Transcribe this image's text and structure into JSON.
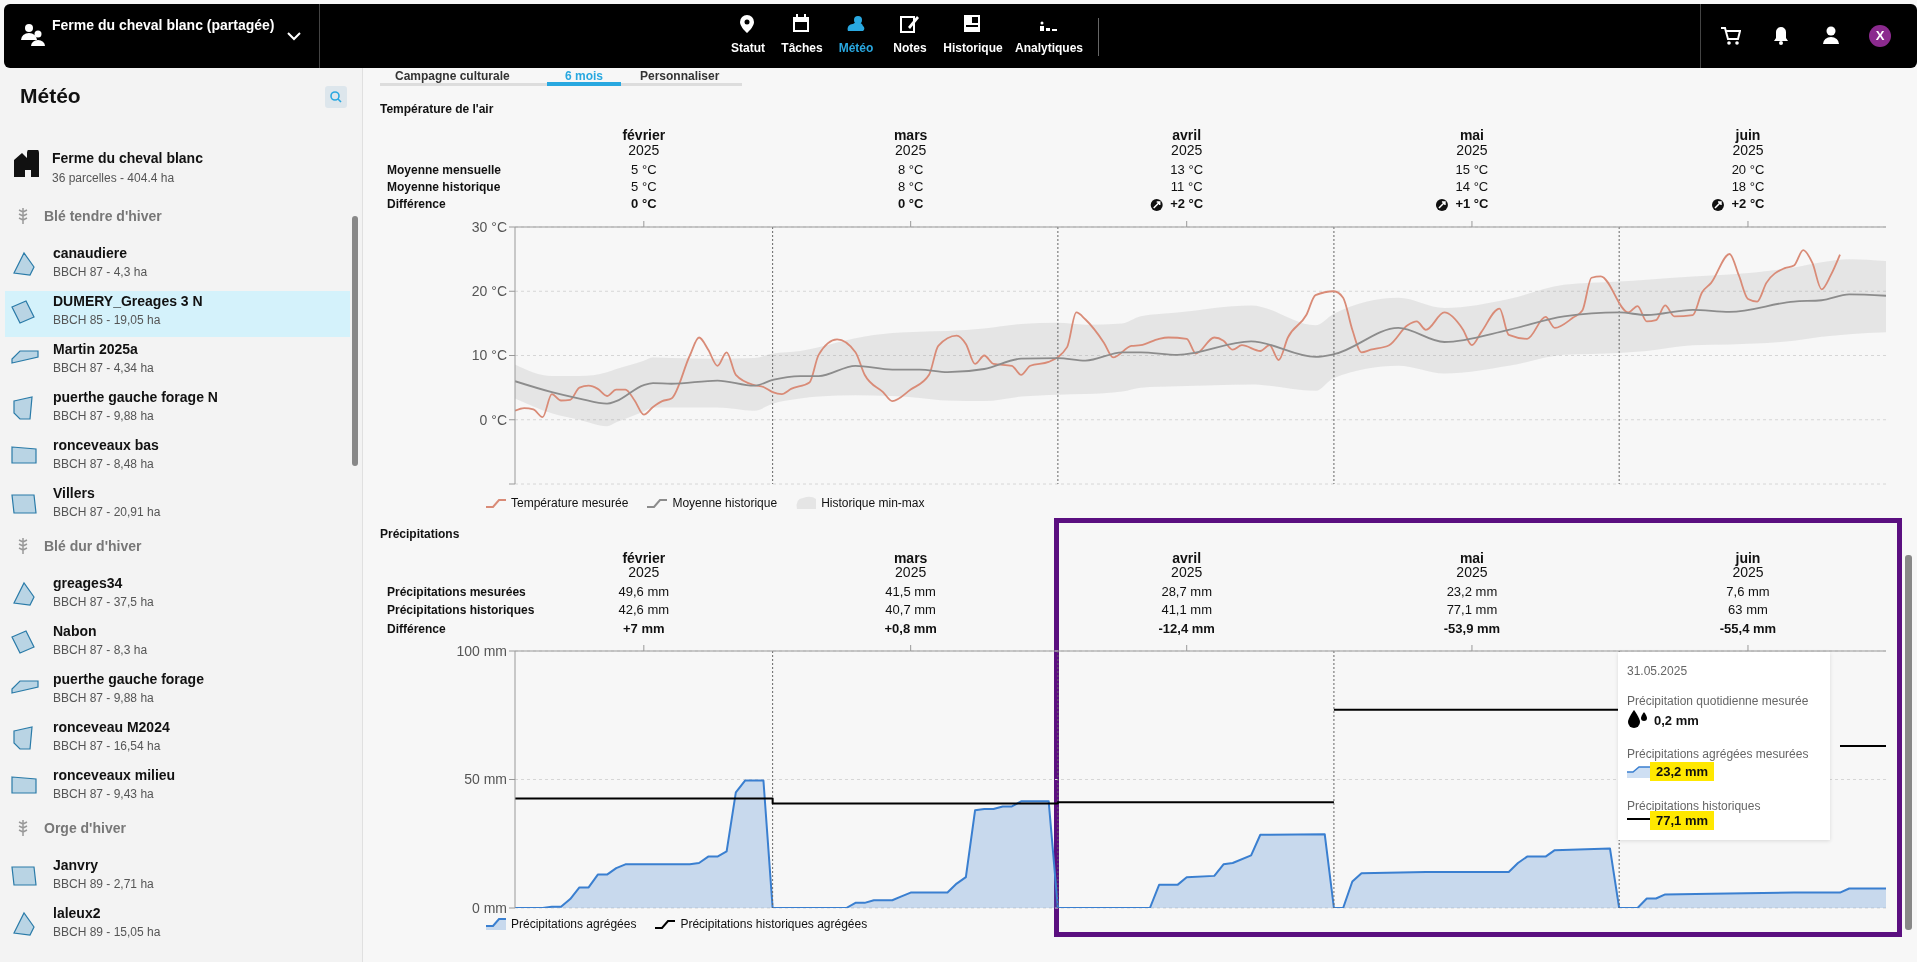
{
  "chart_data": [
    {
      "type": "line",
      "title": "Température de l'air",
      "xlim": [
        "2025-02-01",
        "2025-06-30"
      ],
      "xticks": [
        {
          "value": "2025-02-15",
          "label": "février 2025"
        },
        {
          "value": "2025-03-16",
          "label": "mars 2025"
        },
        {
          "value": "2025-04-15",
          "label": "avril 2025"
        },
        {
          "value": "2025-05-16",
          "label": "mai 2025"
        },
        {
          "value": "2025-06-15",
          "label": "juin 2025"
        }
      ],
      "ylim": [
        -10,
        30
      ],
      "yticks": [
        {
          "value": -10,
          "label": null
        },
        {
          "value": 0,
          "label": "0 °C"
        },
        {
          "value": 10,
          "label": "10 °C"
        },
        {
          "value": 20,
          "label": "20 °C"
        },
        {
          "value": 30,
          "label": "30 °C"
        }
      ],
      "grid": "y",
      "legend": "bottom",
      "ref_lines": [
        {
          "axis": "x",
          "value": "2025-03-01",
          "label": null,
          "line_style": "dotted"
        },
        {
          "axis": "x",
          "value": "2025-04-01",
          "label": null,
          "line_style": "dotted"
        },
        {
          "axis": "x",
          "value": "2025-05-01",
          "label": null,
          "line_style": "dotted"
        },
        {
          "axis": "x",
          "value": "2025-06-01",
          "label": null,
          "line_style": "dotted"
        }
      ],
      "annotations": [
        "Moyenne mensuelle",
        "5 °C",
        "8 °C",
        "13 °C",
        "15 °C",
        "20 °C",
        "Moyenne historique",
        "5 °C",
        "8 °C",
        "11 °C",
        "14 °C",
        "18 °C",
        "Différence",
        "0 °C",
        "0 °C",
        "+2 °C",
        "+1 °C",
        "+2 °C",
        "Historique min-max"
      ],
      "series": [
        {
          "name": "Température mesurée",
          "color": "#d98b77",
          "x": [
            "2025-02-01",
            "2025-02-02",
            "2025-02-03",
            "2025-02-04",
            "2025-02-05",
            "2025-02-06",
            "2025-02-07",
            "2025-02-08",
            "2025-02-09",
            "2025-02-10",
            "2025-02-11",
            "2025-02-12",
            "2025-02-13",
            "2025-02-14",
            "2025-02-15",
            "2025-02-16",
            "2025-02-17",
            "2025-02-18",
            "2025-02-20",
            "2025-02-21",
            "2025-02-22",
            "2025-02-23",
            "2025-02-24",
            "2025-02-25",
            "2025-02-27",
            "2025-02-28",
            "2025-03-01",
            "2025-03-02",
            "2025-03-03",
            "2025-03-05",
            "2025-03-06",
            "2025-03-08",
            "2025-03-10",
            "2025-03-11",
            "2025-03-13",
            "2025-03-14",
            "2025-03-16",
            "2025-03-18",
            "2025-03-19",
            "2025-03-21",
            "2025-03-22",
            "2025-03-23",
            "2025-03-24",
            "2025-03-25",
            "2025-03-27",
            "2025-03-28",
            "2025-03-29",
            "2025-03-31",
            "2025-04-02",
            "2025-04-03",
            "2025-04-04",
            "2025-04-06",
            "2025-04-07",
            "2025-04-09",
            "2025-04-10",
            "2025-04-12",
            "2025-04-13",
            "2025-04-15",
            "2025-04-16",
            "2025-04-18",
            "2025-04-19",
            "2025-04-20",
            "2025-04-21",
            "2025-04-23",
            "2025-04-24",
            "2025-04-25",
            "2025-04-26",
            "2025-04-28",
            "2025-04-29",
            "2025-05-01",
            "2025-05-02",
            "2025-05-03",
            "2025-05-04",
            "2025-05-05",
            "2025-05-07",
            "2025-05-09",
            "2025-05-10",
            "2025-05-11",
            "2025-05-13",
            "2025-05-15",
            "2025-05-16",
            "2025-05-17",
            "2025-05-19",
            "2025-05-20",
            "2025-05-22",
            "2025-05-24",
            "2025-05-25",
            "2025-05-27",
            "2025-05-28",
            "2025-05-29",
            "2025-05-30",
            "2025-06-02",
            "2025-06-03",
            "2025-06-04",
            "2025-06-05",
            "2025-06-06",
            "2025-06-07",
            "2025-06-09",
            "2025-06-10",
            "2025-06-11",
            "2025-06-13",
            "2025-06-14",
            "2025-06-15",
            "2025-06-16",
            "2025-06-17",
            "2025-06-19",
            "2025-06-20",
            "2025-06-21",
            "2025-06-22",
            "2025-06-23",
            "2025-06-24",
            "2025-06-25"
          ],
          "values": [
            1.4,
            1.8,
            1.6,
            0.4,
            4,
            3,
            3.1,
            5,
            5.3,
            4.8,
            3.7,
            4.7,
            4.7,
            3,
            0.8,
            2,
            2.9,
            3.3,
            10,
            12.8,
            10.9,
            8.4,
            10.5,
            7,
            5.4,
            5.1,
            4.3,
            4,
            4.8,
            5.8,
            10.1,
            12.5,
            10.5,
            7,
            4.3,
            2.9,
            4.7,
            7,
            11.5,
            13.1,
            11.8,
            8.7,
            10,
            8.7,
            8.4,
            7,
            8.4,
            9,
            11.3,
            16.7,
            15.6,
            12,
            9.7,
            11.5,
            11.6,
            12.6,
            12.8,
            12.6,
            10.3,
            12.8,
            12.3,
            10.9,
            11.6,
            10.7,
            11.6,
            9.3,
            12.8,
            16.3,
            19.4,
            20,
            19,
            14,
            10.5,
            10.9,
            11.6,
            14.7,
            15.3,
            14,
            16.7,
            14.1,
            11.6,
            13.6,
            17.3,
            13.2,
            12.6,
            16,
            14.3,
            15.9,
            17,
            22.1,
            22.3,
            16.7,
            17.7,
            15.3,
            15.5,
            17.8,
            16.1,
            16.3,
            19.8,
            21.3,
            25.8,
            22.5,
            18.8,
            18.4,
            21.3,
            23.6,
            24,
            26.4,
            24.4,
            20.3,
            22.5,
            25.7
          ]
        },
        {
          "name": "Moyenne historique",
          "color": "#8c8c8c",
          "x": [
            "2025-02-01",
            "2025-02-05",
            "2025-02-08",
            "2025-02-11",
            "2025-02-12",
            "2025-02-15",
            "2025-02-16",
            "2025-02-18",
            "2025-02-23",
            "2025-02-27",
            "2025-03-01",
            "2025-03-04",
            "2025-03-06",
            "2025-03-10",
            "2025-03-14",
            "2025-03-17",
            "2025-03-20",
            "2025-03-24",
            "2025-03-28",
            "2025-04-01",
            "2025-04-04",
            "2025-04-08",
            "2025-04-10",
            "2025-04-14",
            "2025-04-22",
            "2025-04-29",
            "2025-05-01",
            "2025-05-08",
            "2025-05-13",
            "2025-05-20",
            "2025-05-26",
            "2025-06-01",
            "2025-06-04",
            "2025-06-09",
            "2025-06-13",
            "2025-06-20",
            "2025-06-23",
            "2025-06-26",
            "2025-06-30"
          ],
          "values": [
            6,
            4.3,
            3.3,
            2.5,
            2.9,
            5.4,
            5.7,
            5.6,
            6.1,
            5.3,
            6.2,
            6.8,
            6.8,
            8.4,
            7.8,
            7.8,
            7.4,
            7.9,
            9.5,
            9.6,
            9.2,
            10.5,
            10.5,
            10.1,
            12.2,
            9.8,
            10.2,
            14.3,
            12.1,
            14,
            16.1,
            16.7,
            16.3,
            17.1,
            16.8,
            18.4,
            18.6,
            19.5,
            19.3
          ],
          "lower": [
            3.3,
            1,
            0,
            -1,
            -0.4,
            1.3,
            1.9,
            1.9,
            1.9,
            1.4,
            2.5,
            3.3,
            3.6,
            3.8,
            3.7,
            3.4,
            3,
            2.9,
            3.6,
            3.9,
            4,
            4.4,
            5,
            5.2,
            5.5,
            4.5,
            6.5,
            8.4,
            7.2,
            8.4,
            10.1,
            10.4,
            10.7,
            11.6,
            11.7,
            12.3,
            12.9,
            13.3,
            13.6
          ],
          "upper": [
            8.6,
            6.8,
            6.8,
            7.4,
            7.9,
            9.2,
            9.7,
            9.6,
            9.5,
            9.6,
            10.3,
            10.7,
            11.3,
            12.7,
            13.5,
            13.7,
            13.8,
            14.2,
            14.9,
            15.1,
            14.8,
            15,
            16.1,
            16.7,
            17.8,
            14.7,
            16.5,
            19,
            17.4,
            18.8,
            21,
            21.5,
            21.8,
            22.3,
            22.6,
            23.7,
            24.5,
            25,
            24.7
          ]
        }
      ]
    },
    {
      "type": "area",
      "title": "Précipitations",
      "xlim": [
        "2025-02-01",
        "2025-06-30"
      ],
      "xticks": [
        {
          "value": "2025-02-15",
          "label": "février 2025"
        },
        {
          "value": "2025-03-16",
          "label": "mars 2025"
        },
        {
          "value": "2025-04-15",
          "label": "avril 2025"
        },
        {
          "value": "2025-05-16",
          "label": "mai 2025"
        },
        {
          "value": "2025-06-15",
          "label": "juin 2025"
        }
      ],
      "ylim": [
        0,
        100
      ],
      "yticks": [
        {
          "value": 0,
          "label": "0 mm"
        },
        {
          "value": 50,
          "label": "50 mm"
        },
        {
          "value": 100,
          "label": "100 mm"
        }
      ],
      "grid": "y",
      "legend": "bottom",
      "ref_lines": [
        {
          "axis": "x",
          "value": "2025-03-01",
          "label": null,
          "line_style": "dotted"
        },
        {
          "axis": "x",
          "value": "2025-04-01",
          "label": null,
          "line_style": "dotted"
        },
        {
          "axis": "x",
          "value": "2025-05-01",
          "label": null,
          "line_style": "dotted"
        },
        {
          "axis": "x",
          "value": "2025-06-01",
          "label": null,
          "line_style": "dotted"
        }
      ],
      "annotations": [
        "Précipitations mesurées",
        "49,6 mm",
        "41,5 mm",
        "28,7 mm",
        "23,2 mm",
        "7,6 mm",
        "Précipitations historiques",
        "42,6 mm",
        "40,7 mm",
        "41,1 mm",
        "77,1 mm",
        "63 mm",
        "Différence",
        "+7 mm",
        "+0,8 mm",
        "-12,4 mm",
        "-53,9 mm",
        "-55,4 mm",
        "31.05.2025",
        "Précipitation quotidienne mesurée",
        "0,2 mm",
        "Précipitations agrégées mesurées",
        "23,2 mm",
        "Précipitations historiques",
        "77,1 mm"
      ],
      "series": [
        {
          "name": "Précipitations agrégées",
          "color": "#3a7fd0",
          "x": [
            "2025-02-01",
            "2025-02-04",
            "2025-02-05",
            "2025-02-06",
            "2025-02-07",
            "2025-02-08",
            "2025-02-09",
            "2025-02-10",
            "2025-02-11",
            "2025-02-12",
            "2025-02-13",
            "2025-02-20",
            "2025-02-21",
            "2025-02-22",
            "2025-02-23",
            "2025-02-24",
            "2025-02-25",
            "2025-02-26",
            "2025-02-28",
            "2025-03-01",
            "2025-03-09",
            "2025-03-10",
            "2025-03-11",
            "2025-03-12",
            "2025-03-14",
            "2025-03-15",
            "2025-03-16",
            "2025-03-20",
            "2025-03-21",
            "2025-03-22",
            "2025-03-23",
            "2025-03-24",
            "2025-03-25",
            "2025-03-26",
            "2025-03-27",
            "2025-03-28",
            "2025-03-31",
            "2025-04-01",
            "2025-04-11",
            "2025-04-12",
            "2025-04-14",
            "2025-04-15",
            "2025-04-18",
            "2025-04-19",
            "2025-04-20",
            "2025-04-22",
            "2025-04-23",
            "2025-04-30",
            "2025-05-01",
            "2025-05-02",
            "2025-05-03",
            "2025-05-04",
            "2025-05-11",
            "2025-05-20",
            "2025-05-21",
            "2025-05-22",
            "2025-05-24",
            "2025-05-25",
            "2025-05-31",
            "2025-06-01",
            "2025-06-03",
            "2025-06-04",
            "2025-06-05",
            "2025-06-06",
            "2025-06-11",
            "2025-06-20",
            "2025-06-25",
            "2025-06-26",
            "2025-06-30"
          ],
          "values": [
            0,
            0,
            0.5,
            0.5,
            3.5,
            8,
            8,
            13,
            13,
            15.5,
            17,
            17,
            17.5,
            20,
            20,
            22,
            45,
            49.6,
            49.6,
            0,
            0,
            2,
            2,
            3,
            3,
            4.5,
            6,
            6,
            9.5,
            12,
            38,
            38.5,
            38.5,
            39.5,
            39.5,
            41.5,
            41.5,
            0,
            0,
            9,
            9,
            12,
            12.5,
            17,
            17.5,
            20.5,
            28.5,
            28.7,
            0,
            0,
            10.3,
            13.5,
            14,
            14,
            17.5,
            20,
            20,
            22.5,
            23.2,
            0,
            0,
            3.7,
            3.7,
            5.3,
            5.5,
            6,
            6,
            7.6,
            7.6
          ]
        },
        {
          "name": "Précipitations historiques agrégées",
          "type": "line",
          "color": "#000000",
          "x": [
            "2025-02-01",
            "2025-03-01",
            "2025-03-01",
            "2025-04-01",
            "2025-04-01",
            "2025-05-01"
          ],
          "values": [
            42.6,
            42.6,
            40.7,
            40.7,
            41.1,
            41.1
          ]
        },
        {
          "type": "line",
          "color": "#000000",
          "x": [
            "2025-05-01",
            "2025-06-01"
          ],
          "values": [
            77.1,
            77.1
          ]
        },
        {
          "type": "line",
          "color": "#000000",
          "x": [
            "2025-06-25",
            "2025-06-30"
          ],
          "values": [
            63,
            63
          ]
        }
      ]
    },
    {
      "type": "other",
      "annotations": [
        "Ferme du cheval blanc (partagée)",
        "Statut",
        "Tâches",
        "Météo",
        "Notes",
        "Historique",
        "Analytiques",
        "X",
        "Campagne culturale",
        "6 mois",
        "Personnaliser",
        "Météo",
        "Ferme du cheval blanc",
        "36 parcelles - 404.4 ha",
        "Blé tendre d'hiver",
        "canaudiere",
        "BBCH 87 - 4,3 ha",
        "DUMERY_Greages 3 N",
        "BBCH 85 - 19,05 ha",
        "Martin 2025a",
        "BBCH 87 - 4,34 ha",
        "puerthe gauche forage N",
        "BBCH 87 - 9,88 ha",
        "ronceveaux bas",
        "BBCH 87 - 8,48 ha",
        "Villers",
        "BBCH 87 - 20,91 ha",
        "Blé dur d'hiver",
        "greages34",
        "BBCH 87 - 37,5 ha",
        "Nabon",
        "BBCH 87 - 8,3 ha",
        "puerthe gauche forage",
        "BBCH 87 - 9,88 ha",
        "ronceveau M2024",
        "BBCH 87 - 16,54 ha",
        "ronceveaux milieu",
        "BBCH 87 - 9,43 ha",
        "Orge d'hiver",
        "Janvry",
        "BBCH 89 - 2,71 ha",
        "laleux2",
        "BBCH 89 - 15,05 ha"
      ]
    }
  ]
}
